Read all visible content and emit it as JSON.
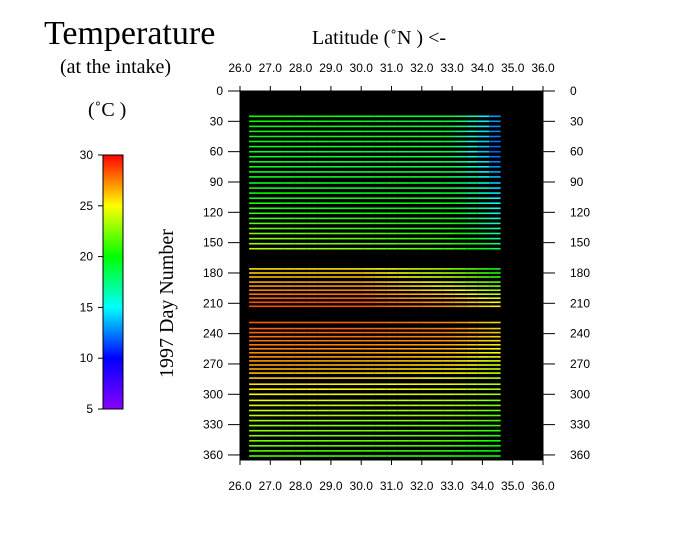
{
  "chart_data": {
    "type": "heatmap",
    "title": "Temperature",
    "subtitle": "(at the intake)",
    "xlabel": "Latitude  (˚N )  <-",
    "ylabel": "1997  Day  Number",
    "colorbar_label": "(˚C )",
    "xlim": [
      26.0,
      36.0
    ],
    "ylim": [
      0,
      365
    ],
    "y_inverted": true,
    "x_ticks": [
      "26.0",
      "27.0",
      "28.0",
      "29.0",
      "30.0",
      "31.0",
      "32.0",
      "33.0",
      "34.0",
      "35.0",
      "36.0"
    ],
    "y_ticks": [
      "0",
      "30",
      "60",
      "90",
      "120",
      "150",
      "180",
      "210",
      "240",
      "270",
      "300",
      "330",
      "360"
    ],
    "colorbar": {
      "min": 5,
      "max": 30,
      "ticks": [
        "30",
        "25",
        "20",
        "15",
        "10",
        "5"
      ],
      "colors": [
        "#8800ff",
        "#0000ff",
        "#00ffff",
        "#00ff00",
        "#ffff00",
        "#ff0000"
      ]
    },
    "plot_background": "#000000",
    "transect_days": [
      25,
      30,
      35,
      40,
      45,
      50,
      55,
      60,
      65,
      70,
      75,
      80,
      85,
      91,
      96,
      101,
      106,
      111,
      116,
      121,
      126,
      131,
      136,
      141,
      146,
      151,
      156,
      176,
      180,
      184,
      189,
      193,
      197,
      201,
      205,
      209,
      213,
      229,
      235,
      239,
      243,
      247,
      251,
      255,
      259,
      263,
      267,
      271,
      275,
      279,
      284,
      290,
      295,
      300,
      306,
      311,
      316,
      321,
      326,
      331,
      336,
      341,
      346,
      351,
      356,
      361
    ],
    "transect_lat_range": [
      26.3,
      34.6
    ],
    "temperature_profiles": [
      {
        "day": 30,
        "lat": [
          26.3,
          33.0,
          34.0,
          34.6
        ],
        "temp": [
          20,
          19,
          15,
          12
        ]
      },
      {
        "day": 60,
        "lat": [
          26.3,
          33.0,
          34.0,
          34.6
        ],
        "temp": [
          19.5,
          18.5,
          14,
          11
        ]
      },
      {
        "day": 90,
        "lat": [
          26.3,
          33.0,
          34.0,
          34.6
        ],
        "temp": [
          19.5,
          19,
          16,
          13
        ]
      },
      {
        "day": 120,
        "lat": [
          26.3,
          33.0,
          34.0,
          34.6
        ],
        "temp": [
          21,
          20,
          17,
          15
        ]
      },
      {
        "day": 150,
        "lat": [
          26.3,
          33.0,
          34.0,
          34.6
        ],
        "temp": [
          23,
          21,
          19,
          17
        ]
      },
      {
        "day": 180,
        "lat": [
          26.3,
          30.0,
          33.0,
          34.6
        ],
        "temp": [
          26,
          26,
          23,
          20
        ]
      },
      {
        "day": 210,
        "lat": [
          26.3,
          30.0,
          33.0,
          34.6
        ],
        "temp": [
          28.5,
          28.5,
          27,
          25
        ]
      },
      {
        "day": 240,
        "lat": [
          26.3,
          30.0,
          33.0,
          34.6
        ],
        "temp": [
          28,
          28,
          27.5,
          26
        ]
      },
      {
        "day": 270,
        "lat": [
          26.3,
          30.0,
          33.0,
          34.6
        ],
        "temp": [
          27,
          26.5,
          25.5,
          24
        ]
      },
      {
        "day": 300,
        "lat": [
          26.3,
          30.0,
          33.0,
          34.6
        ],
        "temp": [
          25,
          24.5,
          24,
          23
        ]
      },
      {
        "day": 330,
        "lat": [
          26.3,
          30.0,
          33.0,
          34.6
        ],
        "temp": [
          23,
          22.5,
          22,
          21
        ]
      },
      {
        "day": 361,
        "lat": [
          26.3,
          30.0,
          33.0,
          34.6
        ],
        "temp": [
          21.5,
          21,
          20.5,
          19.5
        ]
      }
    ]
  }
}
